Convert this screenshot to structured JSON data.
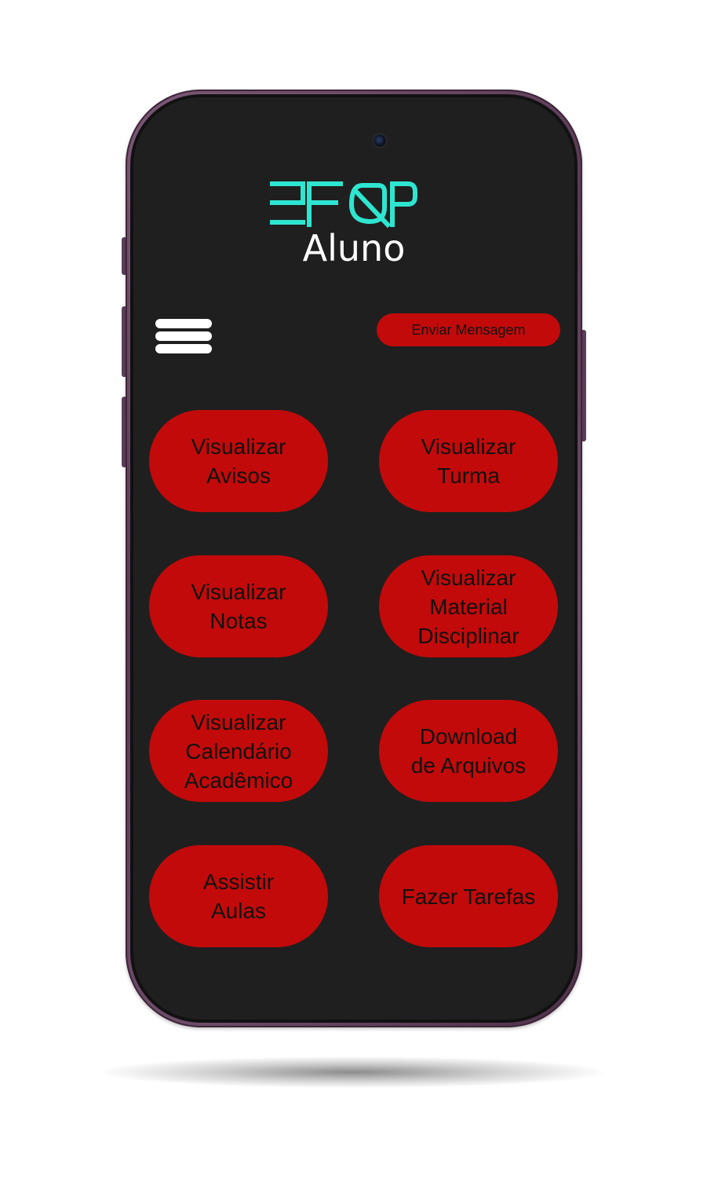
{
  "app": {
    "logo_text": "EFQP",
    "subtitle": "Aluno",
    "logo_color": "#2ee6d0"
  },
  "header": {
    "menu_icon": "hamburger-menu-icon",
    "send_message_label": "Enviar Mensagem"
  },
  "actions": [
    {
      "label": "Visualizar\nAvisos"
    },
    {
      "label": "Visualizar\nTurma"
    },
    {
      "label": "Visualizar\nNotas"
    },
    {
      "label": "Visualizar\nMaterial\nDisciplinar"
    },
    {
      "label": "Visualizar\nCalendário\nAcadêmico"
    },
    {
      "label": "Download\nde Arquivos"
    },
    {
      "label": "Assistir\nAulas"
    },
    {
      "label": "Fazer Tarefas"
    }
  ],
  "colors": {
    "screen_bg": "#1f1f1f",
    "button_red": "#c20a0a",
    "phone_frame": "#6a4a65"
  }
}
